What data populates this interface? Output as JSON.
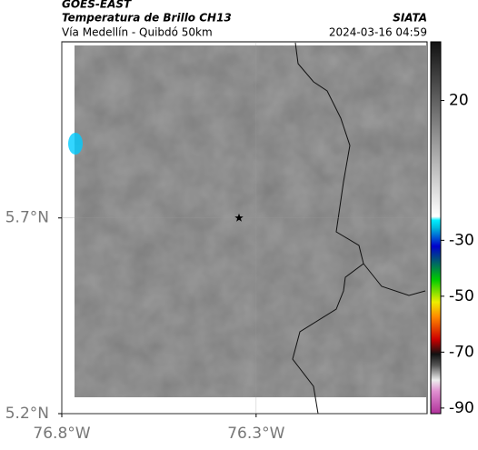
{
  "header": {
    "satellite": "GOES-EAST",
    "title": "Temperatura de Brillo CH13",
    "source": "SIATA",
    "subtitle": "Vía Medellín - Quibdó 50km",
    "timestamp": "2024-03-16 04:59"
  },
  "map": {
    "lonlim": [
      -76.8,
      -75.86
    ],
    "latlim": [
      5.2,
      6.15
    ],
    "lat_ticks": [
      {
        "value": 5.7,
        "label": "5.7°N"
      },
      {
        "value": 5.2,
        "label": "5.2°N"
      }
    ],
    "lon_ticks": [
      {
        "value": -76.8,
        "label": "76.8°W"
      },
      {
        "value": -76.3,
        "label": "76.3°W"
      }
    ],
    "marker": {
      "lon": -76.344,
      "lat": 5.7
    }
  },
  "colorbar": {
    "lim": [
      -92,
      41
    ],
    "ticks": [
      20,
      -30,
      -50,
      -70,
      -90
    ]
  }
}
